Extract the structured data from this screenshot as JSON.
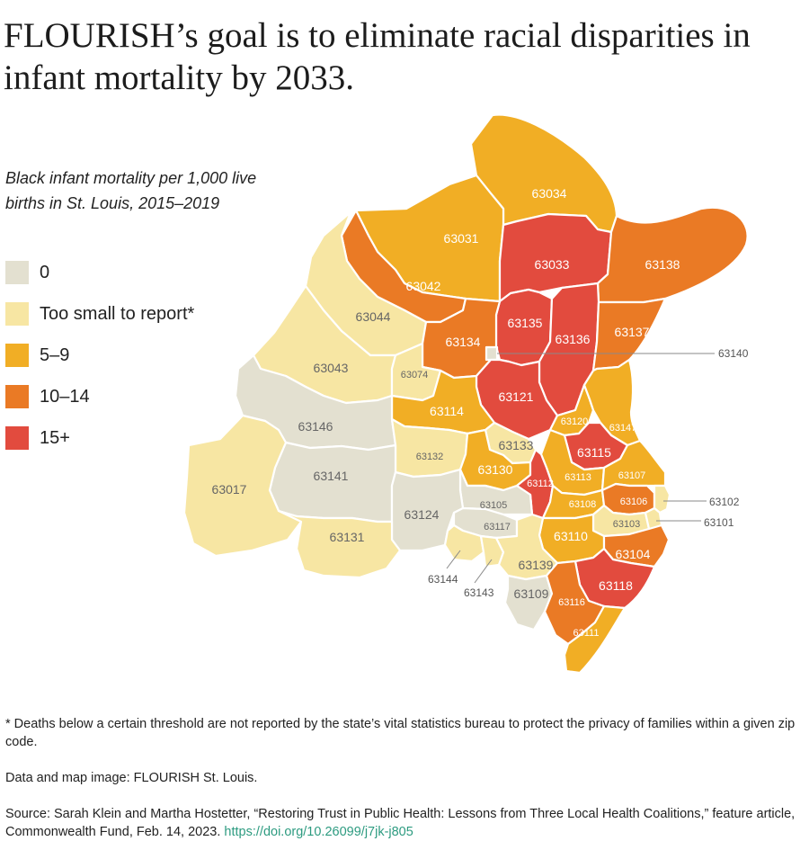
{
  "title": "FLOURISH’s goal is to eliminate racial disparities in infant mortality by 2033.",
  "subtitle": "Black infant mortality per 1,000 live births in St. Louis, 2015–2019",
  "legend": [
    {
      "label": "0",
      "color": "#e3e0d0"
    },
    {
      "label": "Too small to report*",
      "color": "#f7e6a3"
    },
    {
      "label": "5–9",
      "color": "#f1ae25"
    },
    {
      "label": "10–14",
      "color": "#ea7a25"
    },
    {
      "label": "15+",
      "color": "#e24b3e"
    }
  ],
  "zips": [
    {
      "zip": "63034",
      "category": "5–9"
    },
    {
      "zip": "63031",
      "category": "5–9"
    },
    {
      "zip": "63033",
      "category": "15+"
    },
    {
      "zip": "63138",
      "category": "10–14"
    },
    {
      "zip": "63042",
      "category": "10–14"
    },
    {
      "zip": "63044",
      "category": "Too small to report*"
    },
    {
      "zip": "63135",
      "category": "15+"
    },
    {
      "zip": "63136",
      "category": "15+"
    },
    {
      "zip": "63137",
      "category": "10–14"
    },
    {
      "zip": "63134",
      "category": "10–14"
    },
    {
      "zip": "63140",
      "category": "0"
    },
    {
      "zip": "63043",
      "category": "Too small to report*"
    },
    {
      "zip": "63074",
      "category": "Too small to report*"
    },
    {
      "zip": "63121",
      "category": "15+"
    },
    {
      "zip": "63114",
      "category": "5–9"
    },
    {
      "zip": "63120",
      "category": "5–9"
    },
    {
      "zip": "63147",
      "category": "5–9"
    },
    {
      "zip": "63146",
      "category": "0"
    },
    {
      "zip": "63133",
      "category": "Too small to report*"
    },
    {
      "zip": "63115",
      "category": "15+"
    },
    {
      "zip": "63132",
      "category": "Too small to report*"
    },
    {
      "zip": "63130",
      "category": "5–9"
    },
    {
      "zip": "63113",
      "category": "5–9"
    },
    {
      "zip": "63107",
      "category": "5–9"
    },
    {
      "zip": "63141",
      "category": "0"
    },
    {
      "zip": "63017",
      "category": "Too small to report*"
    },
    {
      "zip": "63112",
      "category": "15+"
    },
    {
      "zip": "63105",
      "category": "0"
    },
    {
      "zip": "63108",
      "category": "5–9"
    },
    {
      "zip": "63106",
      "category": "10–14"
    },
    {
      "zip": "63102",
      "category": "Too small to report*"
    },
    {
      "zip": "63124",
      "category": "0"
    },
    {
      "zip": "63117",
      "category": "0"
    },
    {
      "zip": "63103",
      "category": "Too small to report*"
    },
    {
      "zip": "63101",
      "category": "Too small to report*"
    },
    {
      "zip": "63131",
      "category": "Too small to report*"
    },
    {
      "zip": "63110",
      "category": "5–9"
    },
    {
      "zip": "63104",
      "category": "10–14"
    },
    {
      "zip": "63144",
      "category": "Too small to report*"
    },
    {
      "zip": "63143",
      "category": "Too small to report*"
    },
    {
      "zip": "63139",
      "category": "Too small to report*"
    },
    {
      "zip": "63118",
      "category": "15+"
    },
    {
      "zip": "63109",
      "category": "0"
    },
    {
      "zip": "63116",
      "category": "10–14"
    },
    {
      "zip": "63111",
      "category": "5–9"
    }
  ],
  "notes": {
    "footnote": "* Deaths below a certain threshold are not reported by the state’s vital statistics bureau to protect the privacy of families within a given zip code.",
    "data_credit": "Data and map image: FLOURISH St. Louis.",
    "source": "Source: Sarah Klein and Martha Hostetter, “Restoring Trust in Public Health: Lessons from Three Local Health Coalitions,” feature article, Commonwealth Fund, Feb. 14, 2023.",
    "doi": "https://doi.org/10.26099/j7jk-j805"
  }
}
